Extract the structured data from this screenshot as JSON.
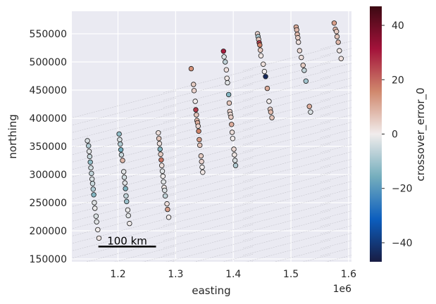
{
  "chart_data": {
    "type": "scatter",
    "xlabel": "easting",
    "ylabel": "northing",
    "x_offset_label": "1e6",
    "xlim": [
      1120000,
      1605000
    ],
    "ylim": [
      145000,
      590000
    ],
    "xticks": [
      1200000,
      1300000,
      1400000,
      1500000,
      1600000
    ],
    "xtick_labels": [
      "1.2",
      "1.3",
      "1.4",
      "1.5",
      "1.6"
    ],
    "yticks": [
      150000,
      200000,
      250000,
      300000,
      350000,
      400000,
      450000,
      500000,
      550000
    ],
    "ytick_labels": [
      "150000",
      "200000",
      "250000",
      "300000",
      "350000",
      "400000",
      "450000",
      "500000",
      "550000"
    ],
    "grid": true,
    "background": "#eaeaf2",
    "scalebar": {
      "label": "100 km",
      "x_start": 1166000,
      "x_end": 1266000,
      "y": 172000
    },
    "colorbar": {
      "label": "crossover_error_0",
      "range": [
        -47,
        47
      ],
      "ticks": [
        -40,
        -20,
        0,
        20,
        40
      ],
      "colormap": "balance",
      "stops": [
        "#181c43",
        "#0c5ebe",
        "#75aebd",
        "#f1ecec",
        "#d0886d",
        "#a3123a",
        "#3c0912"
      ]
    },
    "series": [
      {
        "points": [
          [
            1147000,
            360000,
            -3
          ],
          [
            1149000,
            351000,
            -8
          ],
          [
            1150000,
            341000,
            -2
          ],
          [
            1151000,
            332000,
            -5
          ],
          [
            1152000,
            322000,
            -12
          ],
          [
            1153000,
            312000,
            -4
          ],
          [
            1154000,
            302000,
            -6
          ],
          [
            1155000,
            292000,
            -3
          ],
          [
            1156000,
            284000,
            -5
          ],
          [
            1157000,
            274000,
            -8
          ],
          [
            1158000,
            264000,
            -14
          ],
          [
            1159000,
            250000,
            -2
          ],
          [
            1160000,
            240000,
            -1
          ],
          [
            1162000,
            226000,
            -3
          ],
          [
            1163000,
            216000,
            -2
          ],
          [
            1165000,
            202000,
            0
          ],
          [
            1167000,
            187000,
            1
          ]
        ]
      },
      {
        "points": [
          [
            1202000,
            372000,
            -12
          ],
          [
            1203000,
            362000,
            -3
          ],
          [
            1204000,
            354000,
            -8
          ],
          [
            1205000,
            344000,
            -16
          ],
          [
            1206000,
            335000,
            -5
          ],
          [
            1208000,
            325000,
            8
          ],
          [
            1210000,
            305000,
            -2
          ],
          [
            1211000,
            295000,
            -4
          ],
          [
            1212000,
            285000,
            -2
          ],
          [
            1213000,
            275000,
            -14
          ],
          [
            1214000,
            262000,
            -6
          ],
          [
            1215000,
            252000,
            -11
          ],
          [
            1217000,
            237000,
            -1
          ],
          [
            1218000,
            227000,
            -2
          ],
          [
            1220000,
            213000,
            0
          ]
        ]
      },
      {
        "points": [
          [
            1270000,
            374000,
            2
          ],
          [
            1271000,
            364000,
            6
          ],
          [
            1272000,
            355000,
            2
          ],
          [
            1273000,
            345000,
            -14
          ],
          [
            1274000,
            336000,
            5
          ],
          [
            1275000,
            326000,
            18
          ],
          [
            1276000,
            316000,
            2
          ],
          [
            1277000,
            306000,
            -2
          ],
          [
            1278000,
            297000,
            0
          ],
          [
            1279000,
            287000,
            -2
          ],
          [
            1280000,
            277000,
            1
          ],
          [
            1281000,
            272000,
            -3
          ],
          [
            1282000,
            262000,
            -6
          ],
          [
            1285000,
            248000,
            2
          ],
          [
            1286000,
            238000,
            12
          ],
          [
            1288000,
            224000,
            0
          ]
        ]
      },
      {
        "points": [
          [
            1327000,
            488000,
            14
          ],
          [
            1331000,
            460000,
            5
          ],
          [
            1332000,
            449000,
            4
          ],
          [
            1334000,
            430000,
            0
          ],
          [
            1335000,
            415000,
            26
          ],
          [
            1336000,
            406000,
            6
          ],
          [
            1337000,
            396000,
            8
          ],
          [
            1338000,
            392000,
            10
          ],
          [
            1339000,
            386000,
            4
          ],
          [
            1340000,
            377000,
            16
          ],
          [
            1341000,
            362000,
            12
          ],
          [
            1342000,
            352000,
            6
          ],
          [
            1344000,
            333000,
            5
          ],
          [
            1345000,
            323000,
            4
          ],
          [
            1346000,
            313000,
            0
          ],
          [
            1347000,
            304000,
            1
          ]
        ]
      },
      {
        "points": [
          [
            1383000,
            519000,
            30
          ],
          [
            1384000,
            509000,
            -3
          ],
          [
            1386000,
            500000,
            -6
          ],
          [
            1388000,
            486000,
            2
          ],
          [
            1389000,
            471000,
            1
          ],
          [
            1390000,
            463000,
            -2
          ],
          [
            1392000,
            442000,
            -14
          ],
          [
            1393000,
            427000,
            6
          ],
          [
            1394000,
            412000,
            4
          ],
          [
            1395000,
            407000,
            3
          ],
          [
            1396000,
            402000,
            5
          ],
          [
            1397000,
            389000,
            10
          ],
          [
            1398000,
            375000,
            2
          ],
          [
            1399000,
            364000,
            0
          ],
          [
            1401000,
            345000,
            3
          ],
          [
            1402000,
            335000,
            1
          ],
          [
            1403000,
            325000,
            -3
          ],
          [
            1404000,
            316000,
            -8
          ]
        ]
      },
      {
        "points": [
          [
            1442000,
            550000,
            4
          ],
          [
            1443000,
            545000,
            -9
          ],
          [
            1444000,
            540000,
            6
          ],
          [
            1445000,
            534000,
            26
          ],
          [
            1446000,
            530000,
            16
          ],
          [
            1447000,
            521000,
            5
          ],
          [
            1448000,
            511000,
            1
          ],
          [
            1452000,
            496000,
            2
          ],
          [
            1454000,
            483000,
            0
          ],
          [
            1456000,
            474000,
            -44
          ],
          [
            1459000,
            453000,
            10
          ],
          [
            1462000,
            430000,
            0
          ],
          [
            1464000,
            416000,
            5
          ],
          [
            1465000,
            411000,
            8
          ],
          [
            1467000,
            401000,
            6
          ]
        ]
      },
      {
        "points": [
          [
            1509000,
            562000,
            10
          ],
          [
            1510000,
            557000,
            8
          ],
          [
            1511000,
            549000,
            8
          ],
          [
            1512000,
            543000,
            5
          ],
          [
            1513000,
            535000,
            2
          ],
          [
            1515000,
            520000,
            3
          ],
          [
            1518000,
            508000,
            2
          ],
          [
            1521000,
            494000,
            5
          ],
          [
            1523000,
            485000,
            -6
          ],
          [
            1526000,
            466000,
            -10
          ],
          [
            1532000,
            421000,
            10
          ],
          [
            1534000,
            411000,
            -3
          ]
        ]
      },
      {
        "points": [
          [
            1575000,
            569000,
            12
          ],
          [
            1577000,
            558000,
            8
          ],
          [
            1579000,
            554000,
            5
          ],
          [
            1580000,
            545000,
            6
          ],
          [
            1582000,
            535000,
            8
          ],
          [
            1584000,
            520000,
            1
          ],
          [
            1587000,
            506000,
            2
          ]
        ]
      }
    ]
  }
}
